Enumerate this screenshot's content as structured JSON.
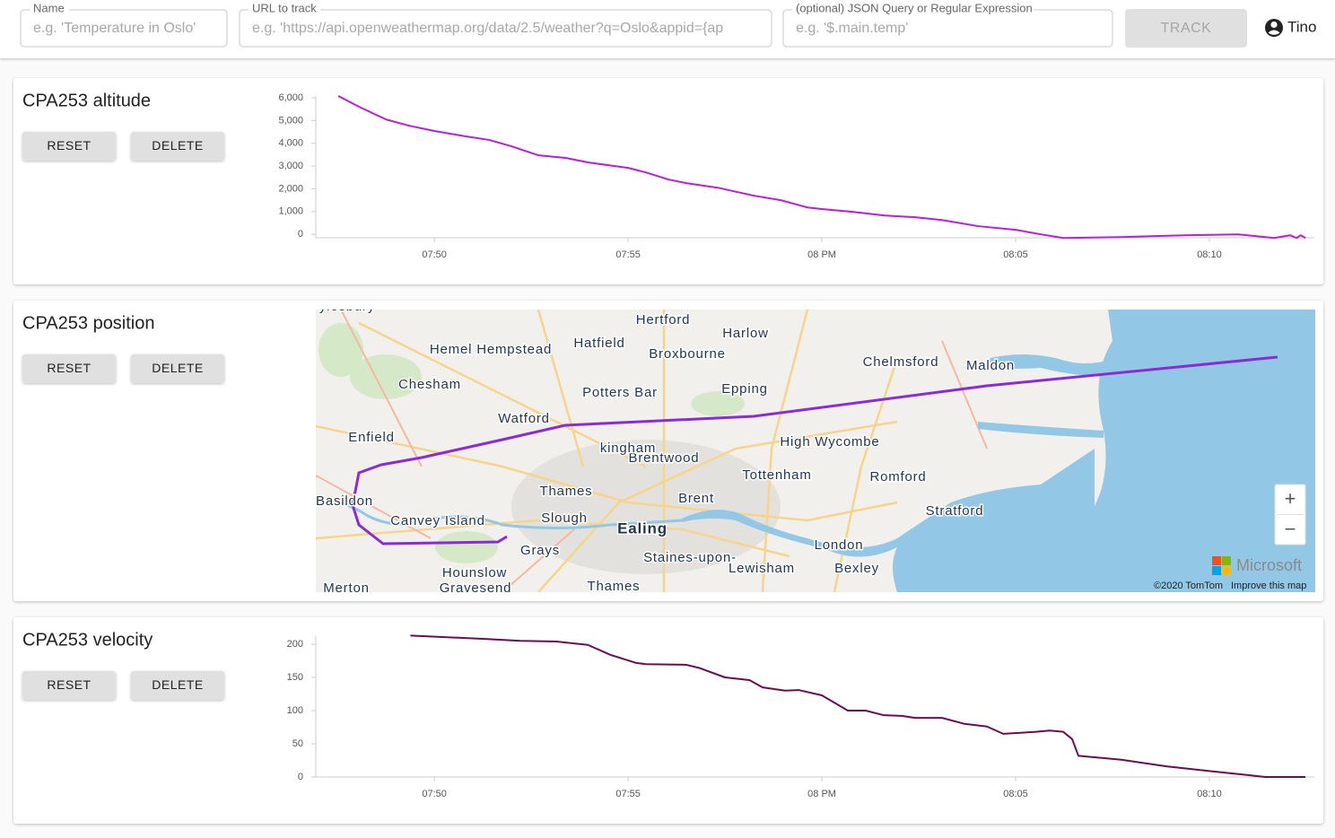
{
  "header": {
    "inputs": [
      {
        "label": "Name",
        "placeholder": "e.g. 'Temperature in Oslo'"
      },
      {
        "label": "URL to track",
        "placeholder": "e.g. 'https://api.openweathermap.org/data/2.5/weather?q=Oslo&appid={ap"
      },
      {
        "label": "(optional) JSON Query or Regular Expression",
        "placeholder": "e.g. '$.main.temp'"
      }
    ],
    "button": "TRACK",
    "user": "Tino"
  },
  "buttons": {
    "reset": "RESET",
    "delete": "DELETE"
  },
  "chart_data": [
    {
      "type": "line",
      "title": "CPA253 altitude",
      "color": "#b620d6",
      "x": [
        1187.52,
        1188.06,
        1188.75,
        1189.33,
        1190,
        1190.83,
        1191.41,
        1191.99,
        1192.69,
        1193.38,
        1193.96,
        1195,
        1195.46,
        1196.04,
        1196.5,
        1197.31,
        1198.24,
        1198.94,
        1199.63,
        1200,
        1200.79,
        1201.6,
        1202.41,
        1203.1,
        1204.03,
        1205,
        1205.65,
        1206.23,
        1207.73,
        1209.35,
        1210.74,
        1211.67,
        1212.08,
        1212.25,
        1212.36,
        1212.48
      ],
      "values": [
        6080,
        5600,
        5050,
        4780,
        4540,
        4300,
        4150,
        3870,
        3470,
        3360,
        3160,
        2920,
        2720,
        2410,
        2250,
        2050,
        1700,
        1500,
        1180,
        1110,
        990,
        830,
        750,
        630,
        360,
        200,
        0,
        -160,
        -120,
        -40,
        0,
        -160,
        -40,
        -160,
        -40,
        -160
      ],
      "xlim": [
        1186.94,
        1212.71
      ],
      "xticks": [
        {
          "value": 1190,
          "label": "07:50"
        },
        {
          "value": 1195,
          "label": "07:55"
        },
        {
          "value": 1200,
          "label": "08 PM"
        },
        {
          "value": 1205,
          "label": "08:05"
        },
        {
          "value": 1210,
          "label": "08:10"
        }
      ],
      "ylim": [
        -150,
        6000
      ],
      "yticks": [
        0,
        {
          "value": 1000,
          "label": "1,000"
        },
        {
          "value": 2000,
          "label": "2,000"
        },
        {
          "value": 3000,
          "label": "3,000"
        },
        {
          "value": 4000,
          "label": "4,000"
        },
        {
          "value": 5000,
          "label": "5,000"
        },
        {
          "value": 6000,
          "label": "6,000"
        }
      ]
    },
    {
      "type": "line",
      "title": "CPA253 velocity",
      "color": "#6a0e52",
      "x": [
        1189.38,
        1190.14,
        1191.3,
        1192.22,
        1193.15,
        1193.96,
        1194.54,
        1195.19,
        1195.46,
        1196.5,
        1196.85,
        1197.5,
        1198.13,
        1198.47,
        1199.05,
        1199.4,
        1200,
        1200.32,
        1200.67,
        1201.13,
        1201.6,
        1202.06,
        1202.41,
        1203.1,
        1203.68,
        1204.26,
        1204.68,
        1205.53,
        1205.88,
        1206.23,
        1206.46,
        1206.62,
        1207.73,
        1208.89,
        1210,
        1210.97,
        1211.44,
        1212.48
      ],
      "values": [
        213,
        211,
        208,
        205,
        204,
        199,
        184,
        172,
        170,
        169,
        164,
        150,
        146,
        135,
        130,
        131,
        123,
        112,
        100,
        100,
        93,
        92,
        89,
        89,
        80,
        76,
        65,
        68,
        70,
        68,
        57,
        32,
        26,
        16,
        9,
        3,
        0,
        0
      ],
      "xlim": [
        1186.94,
        1212.71
      ],
      "xticks": [
        {
          "value": 1190,
          "label": "07:50"
        },
        {
          "value": 1195,
          "label": "07:55"
        },
        {
          "value": 1200,
          "label": "08 PM"
        },
        {
          "value": 1205,
          "label": "08:05"
        },
        {
          "value": 1210,
          "label": "08:10"
        }
      ],
      "ylim": [
        0,
        210
      ],
      "yticks": [
        0,
        50,
        100,
        150,
        200
      ]
    }
  ],
  "map_card": {
    "title": "CPA253 position",
    "places": [
      "ylesbury",
      "Hertford",
      "Hemel Hempstead",
      "Hatfield",
      "Harlow",
      "Broxbourne",
      "Chelmsford",
      "Maldon",
      "Chesham",
      "Potters Bar",
      "Epping",
      "Watford",
      "Enfield",
      "High Wycombe",
      "Brentwood",
      "Tottenham",
      "Romford",
      "Basildon",
      "Thames",
      "Brent",
      "Stratford",
      "Canvey Island",
      "Slough",
      "Ealing",
      "London",
      "Grays",
      "Hounslow",
      "Staines-upon-",
      "Lewisham",
      "Bexley",
      "Gravesend",
      "Thames",
      "Merton",
      "kingham"
    ],
    "zoom_in": "+",
    "zoom_out": "−",
    "brand": "Microsoft",
    "attribution": "©2020 TomTom",
    "improve": "Improve this map"
  }
}
